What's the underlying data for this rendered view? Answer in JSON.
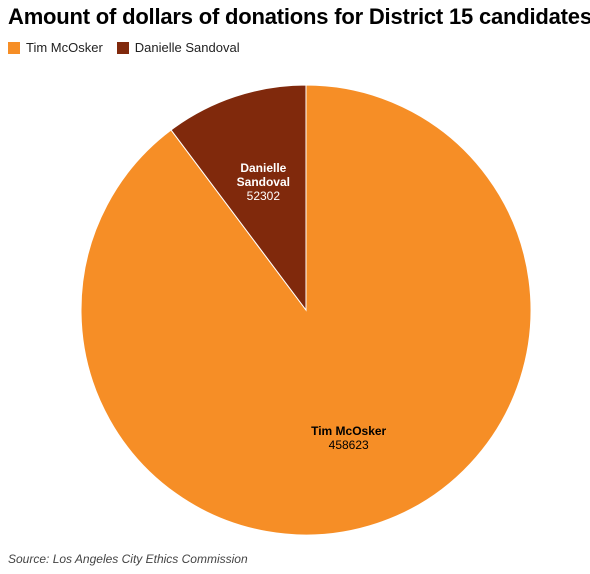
{
  "chart_data": {
    "type": "pie",
    "title": "Amount of dollars of donations for District 15 candidates",
    "legend_position": "top-left",
    "slices": [
      {
        "label": "Tim McOsker",
        "value": 458623,
        "color": "#f68e26"
      },
      {
        "label": "Danielle Sandoval",
        "value": 52302,
        "color": "#80290c"
      }
    ],
    "source": "Source: Los Angeles City Ethics Commission"
  }
}
